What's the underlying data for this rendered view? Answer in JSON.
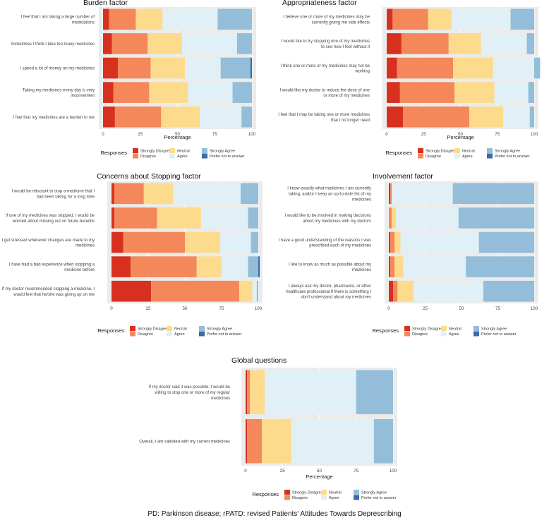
{
  "caption": "PD: Parkinson disease; rPATD: revised Patients' Attitudes Towards Deprescribing",
  "legend": {
    "title": "Responses",
    "categories": [
      "Strongly Disagree",
      "Disagree",
      "Neutral",
      "Agree",
      "Strongly Agree",
      "Prefer not to answer"
    ],
    "colors": [
      "#d7301f",
      "#f4885a",
      "#fddb8c",
      "#e0f0f6",
      "#93bdd9",
      "#3d6aa8"
    ]
  },
  "chart_data": [
    {
      "type": "bar",
      "orientation": "horizontal",
      "stacked": true,
      "title": "Burden factor",
      "xlabel": "Percentage",
      "xlim": [
        0,
        100
      ],
      "xticks": [
        0,
        25,
        50,
        75,
        100
      ],
      "categories": [
        "I feel that I am taking a large number of\nmedications",
        "Sometimes I think I take too many medicines",
        "I spend a lot of money on my medicines",
        "Taking my medicines every day is very\ninconvenient",
        "I feel that my medicines are a burden to me"
      ],
      "series": [
        {
          "name": "Strongly Disagree",
          "values": [
            4,
            6,
            10,
            7,
            8
          ]
        },
        {
          "name": "Disagree",
          "values": [
            18,
            24,
            22,
            24,
            31
          ]
        },
        {
          "name": "Neutral",
          "values": [
            18,
            23,
            23,
            26,
            26
          ]
        },
        {
          "name": "Agree",
          "values": [
            37,
            37,
            24,
            30,
            28
          ]
        },
        {
          "name": "Strongly Agree",
          "values": [
            23,
            10,
            20,
            13,
            7
          ]
        },
        {
          "name": "Prefer not to answer",
          "values": [
            0,
            0,
            1,
            0,
            0
          ]
        }
      ]
    },
    {
      "type": "bar",
      "orientation": "horizontal",
      "stacked": true,
      "title": "Appropriateness factor",
      "xlabel": "Percentage",
      "xlim": [
        0,
        100
      ],
      "xticks": [
        0,
        25,
        50,
        75,
        100
      ],
      "categories": [
        "I believe one or more of my medicines may be\ncurrently giving me side effects",
        "I would like to try stopping one of my medicines\nto see how I feel without it",
        "I think one or more of my medicines may not be\nworking",
        "I would like my doctor to reduce the dose of one\nor more of my medicines",
        "I feel that I may be taking one or more medicines\nthat I no longer need"
      ],
      "series": [
        {
          "name": "Strongly Disagree",
          "values": [
            4,
            10,
            7,
            9,
            11
          ]
        },
        {
          "name": "Disagree",
          "values": [
            24,
            32,
            38,
            37,
            45
          ]
        },
        {
          "name": "Neutral",
          "values": [
            16,
            22,
            27,
            27,
            23
          ]
        },
        {
          "name": "Agree",
          "values": [
            40,
            31,
            28,
            23,
            18
          ]
        },
        {
          "name": "Strongly Agree",
          "values": [
            16,
            5,
            4,
            4,
            3
          ]
        },
        {
          "name": "Prefer not to answer",
          "values": [
            0,
            0,
            0,
            0,
            0
          ]
        }
      ]
    },
    {
      "type": "bar",
      "orientation": "horizontal",
      "stacked": true,
      "title": "Concerns about Stopping factor",
      "xlabel": "",
      "xlim": [
        0,
        100
      ],
      "xticks": [
        0,
        25,
        50,
        75,
        100
      ],
      "categories": [
        "I would be reluctant to stop a medicine that I\nhad been taking for a long time",
        "If one of my medicines was stopped, I would be\nworried about missing out on future benefits",
        "I get stressed whenever changes are made to my\nmedicines",
        "I have had a bad experience when stopping a\nmedicine before",
        "If my doctor recommended stopping a medicine, I\nwould feel that he/she was giving up on me"
      ],
      "series": [
        {
          "name": "Strongly Disagree",
          "values": [
            2,
            2,
            8,
            13,
            27
          ]
        },
        {
          "name": "Disagree",
          "values": [
            20,
            29,
            42,
            45,
            60
          ]
        },
        {
          "name": "Neutral",
          "values": [
            20,
            30,
            24,
            17,
            9
          ]
        },
        {
          "name": "Agree",
          "values": [
            46,
            32,
            21,
            18,
            3
          ]
        },
        {
          "name": "Strongly Agree",
          "values": [
            12,
            7,
            5,
            7,
            1
          ]
        },
        {
          "name": "Prefer not to answer",
          "values": [
            0,
            0,
            0,
            1,
            0
          ]
        }
      ]
    },
    {
      "type": "bar",
      "orientation": "horizontal",
      "stacked": true,
      "title": "Involvement factor",
      "xlabel": "",
      "xlim": [
        0,
        100
      ],
      "xticks": [
        0,
        25,
        50,
        75,
        100
      ],
      "categories": [
        "I know exactly what medicines I am currently\ntaking, and/or I keep an up-to-date list of my\nmedicines",
        "I would like to be involved in making decisions\nabout my medicines with my doctors",
        "I have a good understanding of the reasons I was\nprescribed each of my medicines",
        "I like to know as much as possible about my\nmedicines",
        "I always ask my doctor, pharmacist, or other\nhealthcare professional if there is something I\ndon't understand about my medicines"
      ],
      "series": [
        {
          "name": "Strongly Disagree",
          "values": [
            1,
            0,
            1,
            1,
            3
          ]
        },
        {
          "name": "Disagree",
          "values": [
            1,
            2,
            3,
            3,
            3
          ]
        },
        {
          "name": "Neutral",
          "values": [
            0,
            3,
            4,
            6,
            11
          ]
        },
        {
          "name": "Agree",
          "values": [
            42,
            43,
            54,
            43,
            48
          ]
        },
        {
          "name": "Strongly Agree",
          "values": [
            56,
            52,
            38,
            47,
            35
          ]
        },
        {
          "name": "Prefer not to answer",
          "values": [
            0,
            0,
            0,
            0,
            0
          ]
        }
      ]
    },
    {
      "type": "bar",
      "orientation": "horizontal",
      "stacked": true,
      "title": "Global questions",
      "xlabel": "Percentage",
      "xlim": [
        0,
        100
      ],
      "xticks": [
        0,
        25,
        50,
        75,
        100
      ],
      "categories": [
        "If my doctor said it was possible, I would be\nwilling to stop one or more of my regular\nmedicines",
        "Overall, I am satisfied with my current medicines"
      ],
      "series": [
        {
          "name": "Strongly Disagree",
          "values": [
            1,
            1
          ]
        },
        {
          "name": "Disagree",
          "values": [
            2,
            10
          ]
        },
        {
          "name": "Neutral",
          "values": [
            10,
            20
          ]
        },
        {
          "name": "Agree",
          "values": [
            62,
            56
          ]
        },
        {
          "name": "Strongly Agree",
          "values": [
            25,
            13
          ]
        },
        {
          "name": "Prefer not to answer",
          "values": [
            0,
            0
          ]
        }
      ]
    }
  ]
}
